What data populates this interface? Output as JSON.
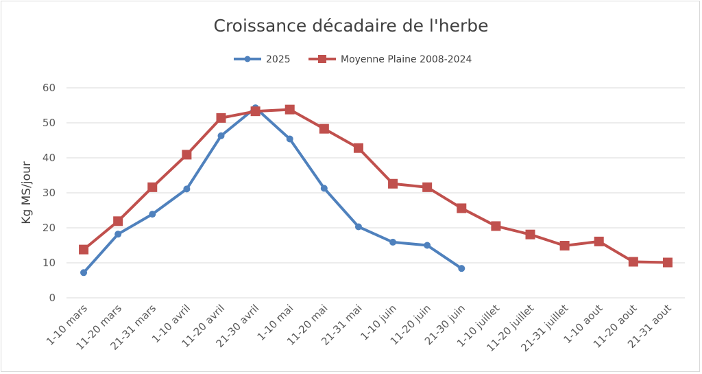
{
  "chart_data": {
    "type": "line",
    "title": "Croissance décadaire de l'herbe",
    "xlabel": "",
    "ylabel": "Kg MS/jour",
    "ylim": [
      0,
      60
    ],
    "yticks": [
      "0",
      "10",
      "20",
      "30",
      "40",
      "50",
      "60"
    ],
    "grid": true,
    "legend_position": "top",
    "categories": [
      "1-10 mars",
      "11-20 mars",
      "21-31 mars",
      "1-10 avril",
      "11-20 avril",
      "21-30 avril",
      "1-10 mai",
      "11-20 mai",
      "21-31 mai",
      "1-10 juin",
      "11-20 juin",
      "21-30 juin",
      "1-10 juillet",
      "11-20 juillet",
      "21-31 juillet",
      "1-10 aout",
      "11-20 aout",
      "21-31 aout"
    ],
    "series": [
      {
        "name": "2025",
        "color": "#4f81bd",
        "marker": "circle",
        "values": [
          7.2,
          18.2,
          23.9,
          31.1,
          46.3,
          54.3,
          45.4,
          31.3,
          20.3,
          15.9,
          15.0,
          8.4,
          null,
          null,
          null,
          null,
          null,
          null
        ]
      },
      {
        "name": "Moyenne Plaine 2008-2024",
        "color": "#c0504d",
        "marker": "square",
        "values": [
          13.8,
          21.9,
          31.6,
          40.9,
          51.4,
          53.3,
          53.8,
          48.3,
          42.8,
          32.6,
          31.6,
          25.6,
          20.5,
          18.1,
          14.9,
          16.1,
          10.3,
          10.1
        ]
      }
    ]
  }
}
